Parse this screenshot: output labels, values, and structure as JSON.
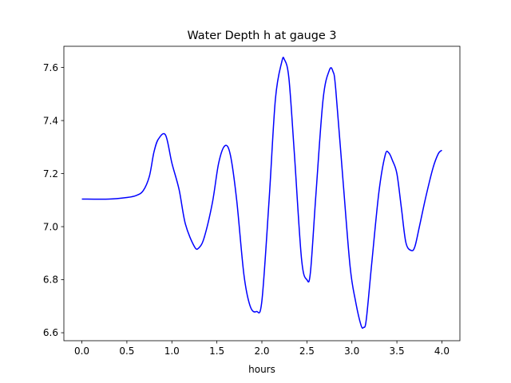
{
  "chart_data": {
    "type": "line",
    "title": "Water Depth h at gauge 3",
    "xlabel": "hours",
    "ylabel": "",
    "xlim": [
      -0.2,
      4.2
    ],
    "ylim": [
      6.57,
      7.68
    ],
    "xticks": [
      0.0,
      0.5,
      1.0,
      1.5,
      2.0,
      2.5,
      3.0,
      3.5,
      4.0
    ],
    "xtick_labels": [
      "0.0",
      "0.5",
      "1.0",
      "1.5",
      "2.0",
      "2.5",
      "3.0",
      "3.5",
      "4.0"
    ],
    "yticks": [
      6.6,
      6.8,
      7.0,
      7.2,
      7.4,
      7.6
    ],
    "ytick_labels": [
      "6.6",
      "6.8",
      "7.0",
      "7.2",
      "7.4",
      "7.6"
    ],
    "grid": false,
    "series": [
      {
        "color": "#0000ff",
        "x": [
          0.0,
          0.3,
          0.5,
          0.6,
          0.68,
          0.75,
          0.8,
          0.85,
          0.93,
          1.0,
          1.08,
          1.15,
          1.25,
          1.3,
          1.36,
          1.45,
          1.52,
          1.59,
          1.65,
          1.72,
          1.8,
          1.87,
          1.94,
          2.0,
          2.08,
          2.15,
          2.22,
          2.25,
          2.3,
          2.36,
          2.44,
          2.5,
          2.54,
          2.6,
          2.68,
          2.75,
          2.79,
          2.82,
          2.9,
          2.98,
          3.04,
          3.1,
          3.13,
          3.16,
          3.22,
          3.3,
          3.37,
          3.41,
          3.45,
          3.5,
          3.55,
          3.6,
          3.66,
          3.7,
          3.75,
          3.82,
          3.9,
          3.96,
          4.0
        ],
        "y": [
          7.104,
          7.104,
          7.11,
          7.117,
          7.135,
          7.19,
          7.28,
          7.33,
          7.345,
          7.24,
          7.14,
          7.01,
          6.925,
          6.92,
          6.96,
          7.09,
          7.24,
          7.305,
          7.27,
          7.1,
          6.82,
          6.7,
          6.68,
          6.72,
          7.1,
          7.48,
          7.62,
          7.63,
          7.56,
          7.28,
          6.88,
          6.8,
          6.83,
          7.12,
          7.48,
          7.59,
          7.585,
          7.52,
          7.18,
          6.85,
          6.72,
          6.63,
          6.62,
          6.65,
          6.86,
          7.13,
          7.27,
          7.278,
          7.25,
          7.2,
          7.07,
          6.94,
          6.91,
          6.925,
          7.0,
          7.11,
          7.22,
          7.275,
          7.288
        ]
      }
    ]
  }
}
